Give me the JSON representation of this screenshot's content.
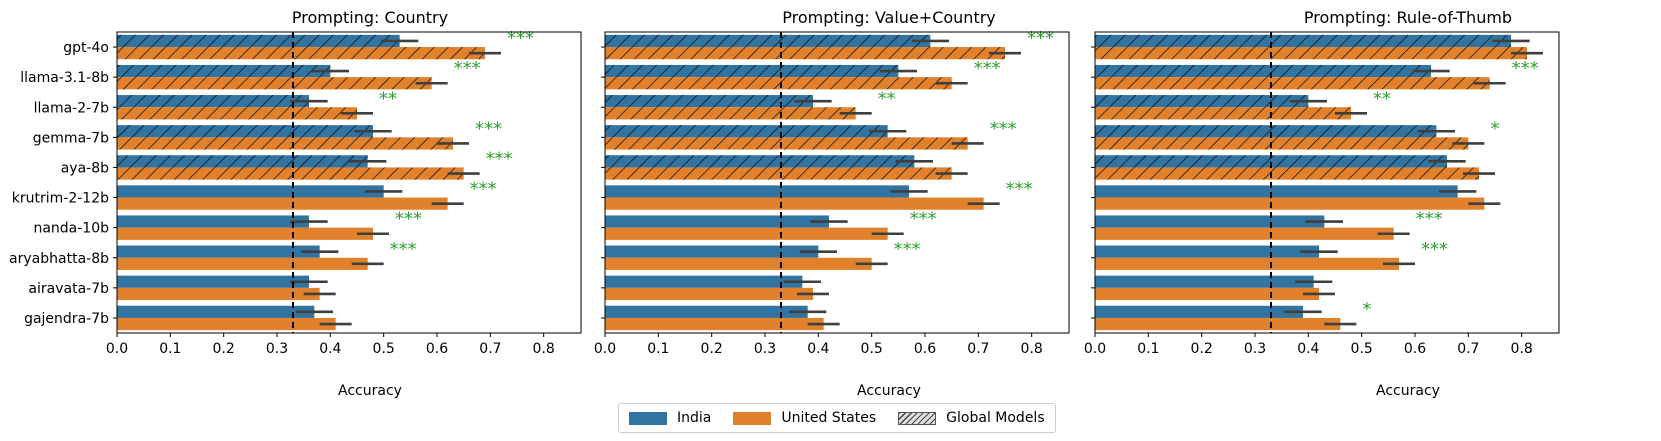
{
  "colors": {
    "india": "#3274a1",
    "us": "#e1812c",
    "sig": "#2ca02c",
    "error": "#3f3f3f"
  },
  "chart_data": [
    {
      "type": "bar",
      "orientation": "horizontal",
      "title": "Prompting: Country",
      "xlabel": "Accuracy",
      "xlim": [
        0,
        0.87
      ],
      "xticks": [
        "0.0",
        "0.1",
        "0.2",
        "0.3",
        "0.4",
        "0.5",
        "0.6",
        "0.7",
        "0.8"
      ],
      "chance_line": 0.33,
      "categories": [
        "gpt-4o",
        "llama-3.1-8b",
        "llama-2-7b",
        "gemma-7b",
        "aya-8b",
        "krutrim-2-12b",
        "nanda-10b",
        "aryabhatta-8b",
        "airavata-7b",
        "gajendra-7b"
      ],
      "global_models": [
        "gpt-4o",
        "llama-3.1-8b",
        "llama-2-7b",
        "gemma-7b",
        "aya-8b"
      ],
      "series": [
        {
          "name": "India",
          "values": [
            0.53,
            0.4,
            0.36,
            0.48,
            0.47,
            0.5,
            0.36,
            0.38,
            0.36,
            0.37
          ],
          "err": [
            0.035,
            0.035,
            0.035,
            0.035,
            0.035,
            0.035,
            0.035,
            0.035,
            0.035,
            0.035
          ]
        },
        {
          "name": "United States",
          "values": [
            0.69,
            0.59,
            0.45,
            0.63,
            0.65,
            0.62,
            0.48,
            0.47,
            0.38,
            0.41
          ],
          "err": [
            0.03,
            0.03,
            0.03,
            0.03,
            0.03,
            0.03,
            0.03,
            0.03,
            0.03,
            0.03
          ]
        }
      ],
      "significance": [
        "***",
        "***",
        "**",
        "***",
        "***",
        "***",
        "***",
        "***",
        "",
        ""
      ]
    },
    {
      "type": "bar",
      "orientation": "horizontal",
      "title": "Prompting: Value+Country",
      "xlabel": "Accuracy",
      "xlim": [
        0,
        0.87
      ],
      "xticks": [
        "0.0",
        "0.1",
        "0.2",
        "0.3",
        "0.4",
        "0.5",
        "0.6",
        "0.7",
        "0.8"
      ],
      "chance_line": 0.33,
      "categories": [
        "gpt-4o",
        "llama-3.1-8b",
        "llama-2-7b",
        "gemma-7b",
        "aya-8b",
        "krutrim-2-12b",
        "nanda-10b",
        "aryabhatta-8b",
        "airavata-7b",
        "gajendra-7b"
      ],
      "global_models": [
        "gpt-4o",
        "llama-3.1-8b",
        "llama-2-7b",
        "gemma-7b",
        "aya-8b"
      ],
      "series": [
        {
          "name": "India",
          "values": [
            0.61,
            0.55,
            0.39,
            0.53,
            0.58,
            0.57,
            0.42,
            0.4,
            0.37,
            0.38
          ],
          "err": [
            0.035,
            0.035,
            0.035,
            0.035,
            0.035,
            0.035,
            0.035,
            0.035,
            0.035,
            0.035
          ]
        },
        {
          "name": "United States",
          "values": [
            0.75,
            0.65,
            0.47,
            0.68,
            0.65,
            0.71,
            0.53,
            0.5,
            0.39,
            0.41
          ],
          "err": [
            0.03,
            0.03,
            0.03,
            0.03,
            0.03,
            0.03,
            0.03,
            0.03,
            0.03,
            0.03
          ]
        }
      ],
      "significance": [
        "***",
        "***",
        "**",
        "***",
        "",
        "***",
        "***",
        "***",
        "",
        ""
      ]
    },
    {
      "type": "bar",
      "orientation": "horizontal",
      "title": "Prompting: Rule-of-Thumb",
      "xlabel": "Accuracy",
      "xlim": [
        0,
        0.87
      ],
      "xticks": [
        "0.0",
        "0.1",
        "0.2",
        "0.3",
        "0.4",
        "0.5",
        "0.6",
        "0.7",
        "0.8"
      ],
      "chance_line": 0.33,
      "categories": [
        "gpt-4o",
        "llama-3.1-8b",
        "llama-2-7b",
        "gemma-7b",
        "aya-8b",
        "krutrim-2-12b",
        "nanda-10b",
        "aryabhatta-8b",
        "airavata-7b",
        "gajendra-7b"
      ],
      "global_models": [
        "gpt-4o",
        "llama-3.1-8b",
        "llama-2-7b",
        "gemma-7b",
        "aya-8b"
      ],
      "series": [
        {
          "name": "India",
          "values": [
            0.78,
            0.63,
            0.4,
            0.64,
            0.66,
            0.68,
            0.43,
            0.42,
            0.41,
            0.39
          ],
          "err": [
            0.035,
            0.035,
            0.035,
            0.035,
            0.035,
            0.035,
            0.035,
            0.035,
            0.035,
            0.035
          ]
        },
        {
          "name": "United States",
          "values": [
            0.81,
            0.74,
            0.48,
            0.7,
            0.72,
            0.73,
            0.56,
            0.57,
            0.42,
            0.46
          ],
          "err": [
            0.03,
            0.03,
            0.03,
            0.03,
            0.03,
            0.03,
            0.03,
            0.03,
            0.03,
            0.03
          ]
        }
      ],
      "significance": [
        "",
        "***",
        "**",
        "*",
        "",
        "",
        "***",
        "***",
        "",
        "*"
      ]
    }
  ],
  "legend": {
    "india": "India",
    "us": "United States",
    "global": "Global Models"
  }
}
